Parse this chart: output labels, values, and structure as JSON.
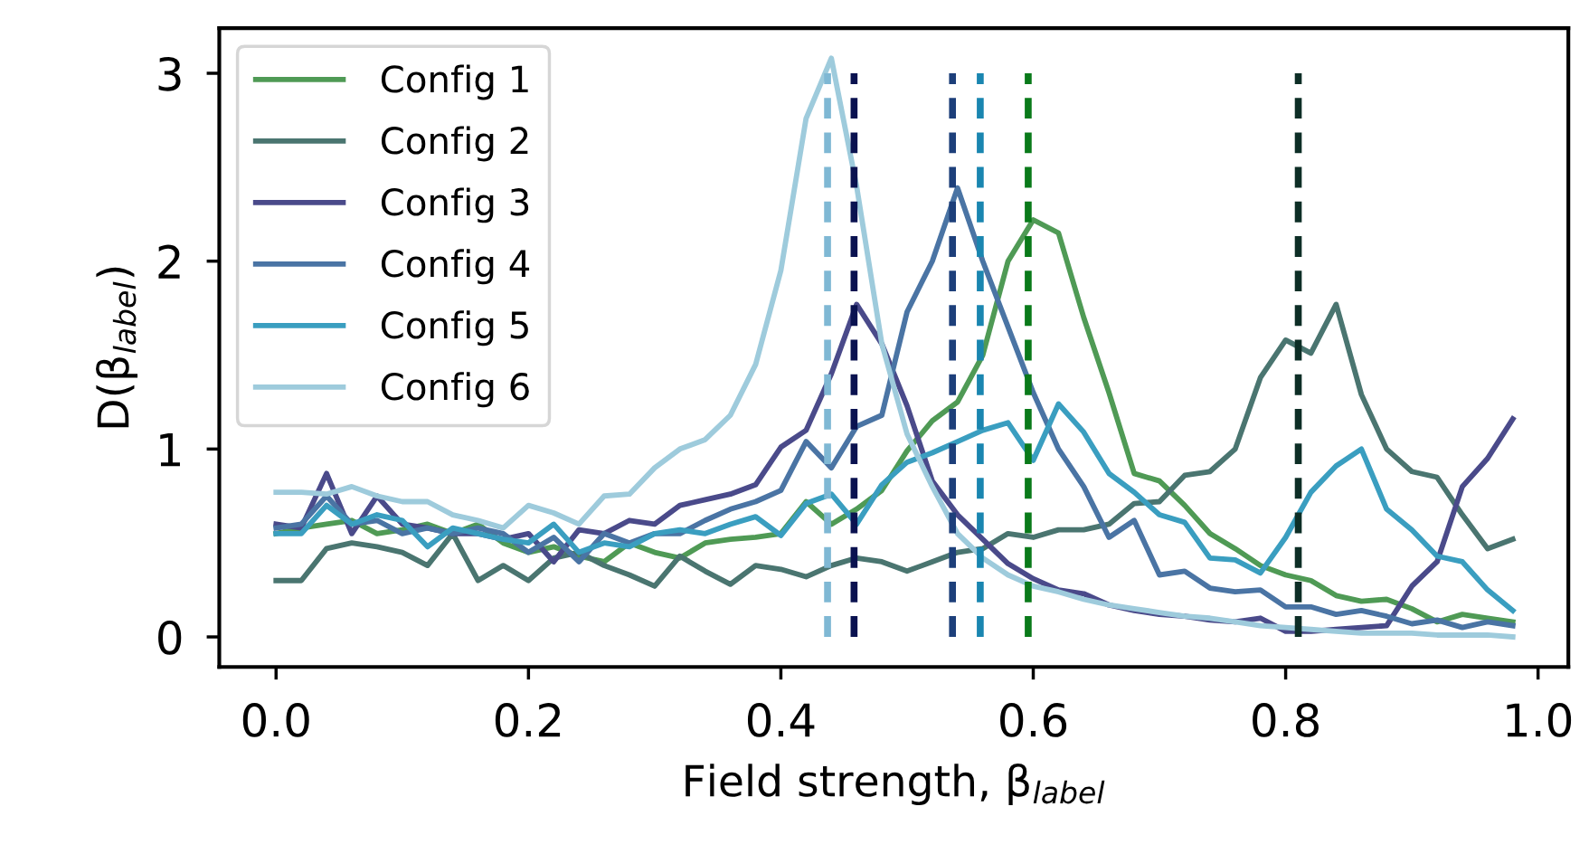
{
  "chart_data": {
    "type": "line",
    "xlabel": "Field strength, β$_{label}$",
    "ylabel": "D(β$_{label}$)",
    "x": [
      0.0,
      0.02,
      0.04,
      0.06,
      0.08,
      0.1,
      0.12,
      0.14,
      0.16,
      0.18,
      0.2,
      0.22,
      0.24,
      0.26,
      0.28,
      0.3,
      0.32,
      0.34,
      0.36,
      0.38,
      0.4,
      0.42,
      0.44,
      0.46,
      0.48,
      0.5,
      0.52,
      0.54,
      0.56,
      0.58,
      0.6,
      0.62,
      0.64,
      0.66,
      0.68,
      0.7,
      0.72,
      0.74,
      0.76,
      0.78,
      0.8,
      0.82,
      0.84,
      0.86,
      0.88,
      0.9,
      0.92,
      0.94,
      0.96,
      0.98
    ],
    "series": [
      {
        "name": "Config 1",
        "color": "#4f9a55",
        "values": [
          0.55,
          0.58,
          0.6,
          0.62,
          0.55,
          0.57,
          0.6,
          0.55,
          0.6,
          0.5,
          0.45,
          0.48,
          0.43,
          0.4,
          0.5,
          0.45,
          0.42,
          0.5,
          0.52,
          0.53,
          0.55,
          0.72,
          0.6,
          0.68,
          0.78,
          0.99,
          1.15,
          1.25,
          1.5,
          2.0,
          2.22,
          2.15,
          1.7,
          1.3,
          0.87,
          0.83,
          0.7,
          0.55,
          0.47,
          0.38,
          0.33,
          0.3,
          0.22,
          0.19,
          0.2,
          0.15,
          0.08,
          0.12,
          0.1,
          0.08
        ]
      },
      {
        "name": "Config 2",
        "color": "#4a7570",
        "values": [
          0.3,
          0.3,
          0.47,
          0.5,
          0.48,
          0.45,
          0.38,
          0.55,
          0.3,
          0.38,
          0.3,
          0.42,
          0.45,
          0.38,
          0.33,
          0.27,
          0.43,
          0.35,
          0.28,
          0.38,
          0.36,
          0.32,
          0.38,
          0.42,
          0.4,
          0.35,
          0.4,
          0.45,
          0.47,
          0.55,
          0.53,
          0.57,
          0.57,
          0.6,
          0.71,
          0.72,
          0.86,
          0.88,
          1.0,
          1.38,
          1.58,
          1.51,
          1.77,
          1.29,
          1.0,
          0.88,
          0.85,
          0.65,
          0.47,
          0.52
        ]
      },
      {
        "name": "Config 3",
        "color": "#4a4a8a",
        "values": [
          0.6,
          0.58,
          0.87,
          0.55,
          0.75,
          0.6,
          0.58,
          0.55,
          0.55,
          0.52,
          0.55,
          0.4,
          0.57,
          0.55,
          0.62,
          0.6,
          0.7,
          0.73,
          0.76,
          0.81,
          1.01,
          1.1,
          1.4,
          1.77,
          1.56,
          1.23,
          0.83,
          0.65,
          0.52,
          0.39,
          0.31,
          0.25,
          0.23,
          0.17,
          0.14,
          0.12,
          0.11,
          0.09,
          0.08,
          0.1,
          0.03,
          0.03,
          0.04,
          0.05,
          0.06,
          0.27,
          0.4,
          0.8,
          0.95,
          1.16
        ]
      },
      {
        "name": "Config 4",
        "color": "#4a74a4",
        "values": [
          0.58,
          0.6,
          0.75,
          0.6,
          0.62,
          0.55,
          0.58,
          0.55,
          0.58,
          0.55,
          0.45,
          0.53,
          0.4,
          0.55,
          0.5,
          0.55,
          0.55,
          0.62,
          0.68,
          0.72,
          0.78,
          1.04,
          0.9,
          1.12,
          1.18,
          1.73,
          2.0,
          2.39,
          2.0,
          1.65,
          1.3,
          1.0,
          0.8,
          0.53,
          0.62,
          0.33,
          0.35,
          0.26,
          0.24,
          0.25,
          0.16,
          0.16,
          0.12,
          0.14,
          0.11,
          0.07,
          0.09,
          0.05,
          0.08,
          0.06
        ]
      },
      {
        "name": "Config 5",
        "color": "#3a9ec0",
        "values": [
          0.55,
          0.55,
          0.7,
          0.6,
          0.65,
          0.62,
          0.48,
          0.58,
          0.55,
          0.52,
          0.5,
          0.6,
          0.45,
          0.5,
          0.48,
          0.55,
          0.57,
          0.55,
          0.6,
          0.64,
          0.54,
          0.71,
          0.76,
          0.6,
          0.81,
          0.93,
          0.98,
          1.04,
          1.1,
          1.14,
          0.94,
          1.24,
          1.09,
          0.87,
          0.77,
          0.65,
          0.61,
          0.42,
          0.41,
          0.34,
          0.53,
          0.77,
          0.91,
          1.0,
          0.68,
          0.57,
          0.43,
          0.4,
          0.25,
          0.14
        ]
      },
      {
        "name": "Config 6",
        "color": "#9ecbdc",
        "values": [
          0.77,
          0.77,
          0.76,
          0.8,
          0.75,
          0.72,
          0.72,
          0.65,
          0.62,
          0.58,
          0.7,
          0.66,
          0.6,
          0.75,
          0.76,
          0.9,
          1.0,
          1.05,
          1.18,
          1.45,
          1.95,
          2.76,
          3.08,
          2.4,
          1.56,
          1.08,
          0.8,
          0.55,
          0.42,
          0.33,
          0.27,
          0.24,
          0.2,
          0.17,
          0.15,
          0.13,
          0.11,
          0.1,
          0.08,
          0.06,
          0.05,
          0.04,
          0.03,
          0.02,
          0.02,
          0.02,
          0.01,
          0.01,
          0.01,
          0.0
        ]
      }
    ],
    "ref_lines": [
      {
        "axis": "x",
        "value": 0.437,
        "color": "#7fb8d4",
        "line_style": "dashed"
      },
      {
        "axis": "x",
        "value": 0.458,
        "color": "#0a1250",
        "line_style": "dashed"
      },
      {
        "axis": "x",
        "value": 0.536,
        "color": "#1d3f7a",
        "line_style": "dashed"
      },
      {
        "axis": "x",
        "value": 0.558,
        "color": "#1a86b0",
        "line_style": "dashed"
      },
      {
        "axis": "x",
        "value": 0.596,
        "color": "#0a7a1a",
        "line_style": "dashed"
      },
      {
        "axis": "x",
        "value": 0.81,
        "color": "#0d2e26",
        "line_style": "dashed"
      }
    ],
    "xlim": [
      -0.045,
      1.024
    ],
    "ylim": [
      -0.16,
      3.24
    ],
    "xticks": [
      {
        "value": 0,
        "label": "0.0"
      },
      0.2,
      0.4,
      0.6,
      0.8,
      {
        "value": 1,
        "label": "1.0"
      }
    ],
    "yticks": [
      0,
      1,
      2,
      3
    ],
    "legend": "top left",
    "grid": false,
    "marker": "none",
    "line_style": "solid"
  }
}
